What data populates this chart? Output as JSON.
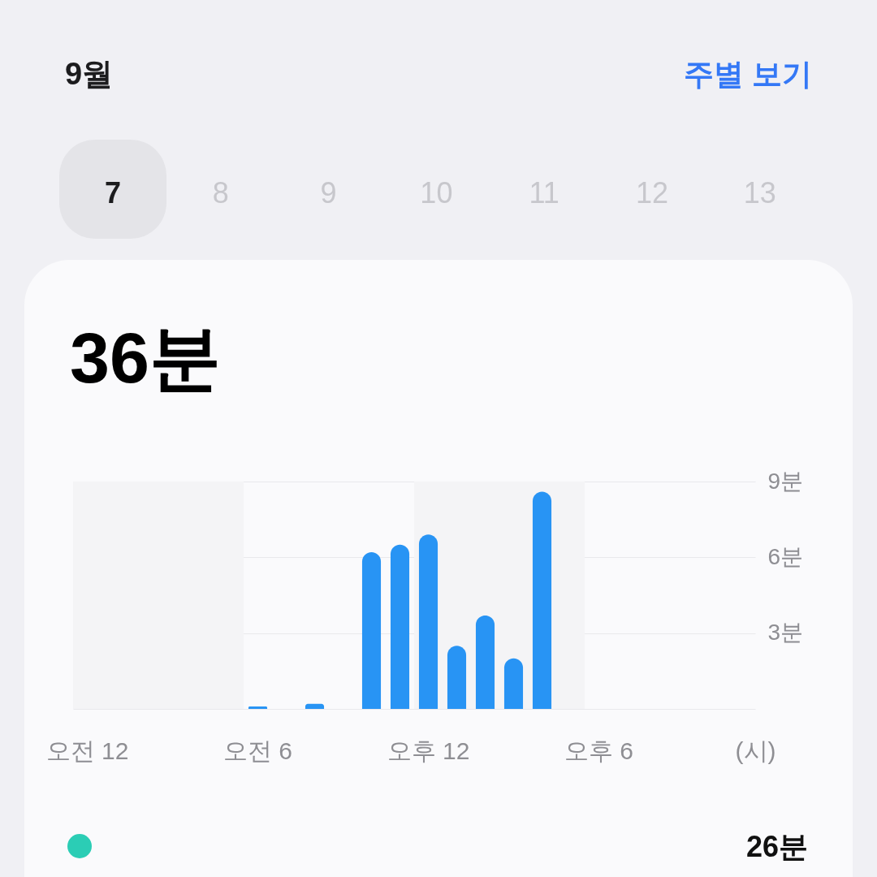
{
  "chart_data": {
    "type": "bar",
    "title": "36분",
    "xlabel": "(시)",
    "categories": [
      "오전 12",
      null,
      null,
      null,
      null,
      null,
      "오전 6",
      null,
      null,
      null,
      null,
      null,
      "오후 12",
      null,
      null,
      null,
      null,
      null,
      "오후 6",
      null,
      null,
      null,
      null,
      null
    ],
    "values": [
      null,
      null,
      null,
      null,
      null,
      null,
      0.1,
      null,
      0.2,
      null,
      6.2,
      6.5,
      6.9,
      2.5,
      3.7,
      2.0,
      8.6,
      null,
      null,
      null,
      null,
      null,
      null,
      null
    ],
    "color": "#2894f4",
    "ylim": [
      0,
      9
    ],
    "yticks": [
      {
        "value": 0,
        "label": null
      },
      {
        "value": 3,
        "label": "3분"
      },
      {
        "value": 6,
        "label": "6분"
      },
      {
        "value": 9,
        "label": "9분"
      }
    ],
    "grid": "y",
    "bands": [
      {
        "axis": "x",
        "from": "오전 12",
        "to": "오전 6",
        "color": "#f4f4f6"
      },
      {
        "axis": "x",
        "from": "오후 12",
        "to": "오후 6",
        "color": "#f4f4f6"
      }
    ],
    "annotations": [
      "9월",
      "주별 보기",
      "7",
      "8",
      "9",
      "10",
      "11",
      "12",
      "13",
      "26분"
    ]
  }
}
